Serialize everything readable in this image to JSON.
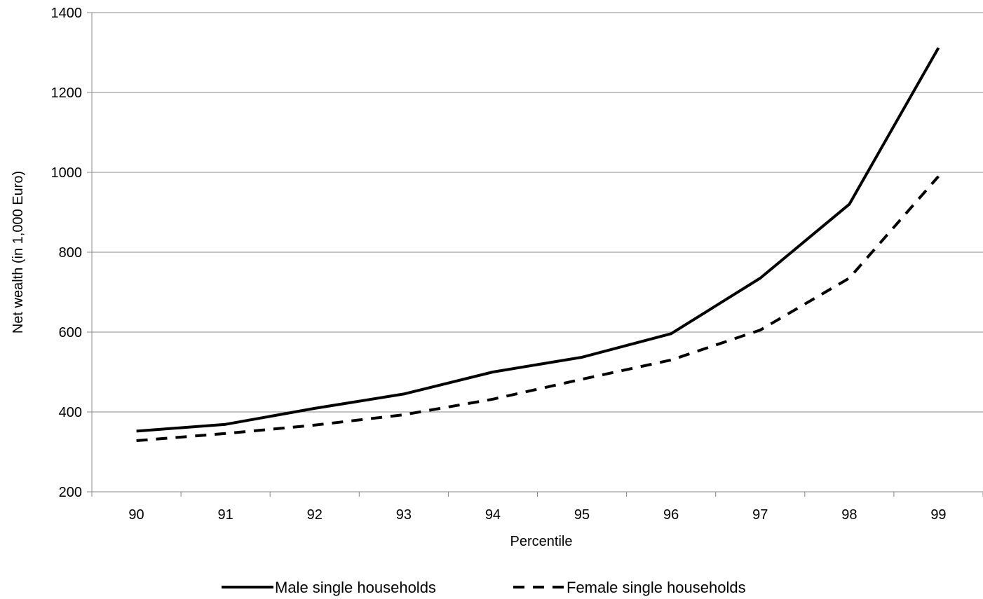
{
  "chart_data": {
    "type": "line",
    "xlabel": "Percentile",
    "ylabel": "Net wealth (in 1,000 Euro)",
    "ylim": [
      200,
      1400
    ],
    "yticks": [
      "200",
      "400",
      "600",
      "800",
      "1000",
      "1200",
      "1400"
    ],
    "categories": [
      "90",
      "91",
      "92",
      "93",
      "94",
      "95",
      "96",
      "97",
      "98",
      "99"
    ],
    "grid": true,
    "legend_position": "bottom",
    "series": [
      {
        "name": "Male single households",
        "style": "solid",
        "color": "#000000",
        "values": [
          352,
          369,
          409,
          445,
          500,
          537,
          596,
          735,
          920,
          1312
        ]
      },
      {
        "name": "Female single households",
        "style": "dashed",
        "color": "#000000",
        "values": [
          328,
          346,
          367,
          393,
          432,
          482,
          530,
          605,
          735,
          990
        ]
      }
    ]
  }
}
